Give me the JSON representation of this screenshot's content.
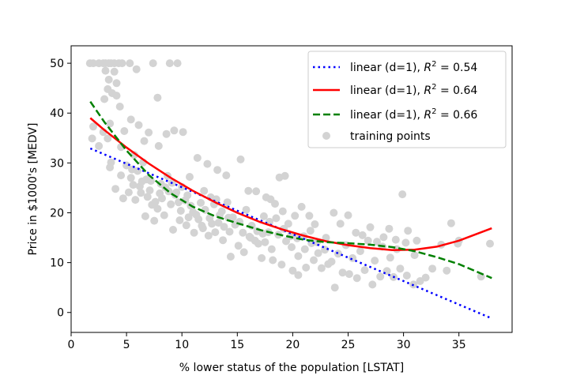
{
  "chart_data": {
    "type": "scatter",
    "title": "",
    "xlabel": "% lower status of the population [LSTAT]",
    "ylabel": "Price in $1000's [MEDV]",
    "xlim": [
      0,
      39.8
    ],
    "ylim": [
      -4,
      53.5
    ],
    "xticks": [
      0,
      5,
      10,
      15,
      20,
      25,
      30,
      35
    ],
    "yticks": [
      0,
      10,
      20,
      30,
      40,
      50
    ],
    "grid": false,
    "legend_position": "top-right",
    "scatter_series": {
      "name": "training points",
      "color": "#d3d3d3",
      "points": [
        [
          1.7,
          50
        ],
        [
          2.0,
          50
        ],
        [
          2.5,
          50
        ],
        [
          2.9,
          50
        ],
        [
          3.1,
          50
        ],
        [
          3.4,
          50
        ],
        [
          3.6,
          50
        ],
        [
          3.9,
          50
        ],
        [
          4.3,
          50
        ],
        [
          4.6,
          50
        ],
        [
          5.3,
          50
        ],
        [
          7.4,
          50
        ],
        [
          8.9,
          50
        ],
        [
          9.6,
          50
        ],
        [
          3.1,
          48.5
        ],
        [
          3.9,
          48.3
        ],
        [
          5.9,
          48.8
        ],
        [
          3.4,
          46.7
        ],
        [
          4.1,
          46
        ],
        [
          3.3,
          44.8
        ],
        [
          3.7,
          44
        ],
        [
          4.1,
          43.5
        ],
        [
          7.8,
          43.1
        ],
        [
          3.0,
          42.8
        ],
        [
          4.4,
          41.3
        ],
        [
          2.0,
          37.3
        ],
        [
          3.5,
          37.9
        ],
        [
          5.4,
          38.7
        ],
        [
          2.9,
          36.2
        ],
        [
          3.3,
          34.9
        ],
        [
          4.8,
          36.4
        ],
        [
          1.9,
          34.9
        ],
        [
          2.5,
          33.4
        ],
        [
          4.5,
          33.2
        ],
        [
          6.1,
          37.6
        ],
        [
          7.0,
          36.1
        ],
        [
          8.6,
          35.8
        ],
        [
          9.3,
          36.5
        ],
        [
          10.1,
          36.2
        ],
        [
          5.7,
          31.6
        ],
        [
          6.5,
          30.1
        ],
        [
          5.5,
          28.7
        ],
        [
          3.6,
          30.1
        ],
        [
          4.5,
          27.5
        ],
        [
          3.5,
          29.1
        ],
        [
          6.6,
          34.4
        ],
        [
          7.9,
          33.4
        ],
        [
          4.0,
          24.8
        ],
        [
          4.7,
          22.9
        ],
        [
          5.2,
          24.1
        ],
        [
          5.8,
          22.6
        ],
        [
          6.2,
          25.3
        ],
        [
          6.8,
          26.7
        ],
        [
          7.1,
          24.5
        ],
        [
          7.6,
          22.2
        ],
        [
          8.0,
          23.9
        ],
        [
          8.5,
          25.1
        ],
        [
          9.0,
          21.7
        ],
        [
          9.4,
          23.6
        ],
        [
          9.9,
          20.4
        ],
        [
          10.3,
          22.5
        ],
        [
          10.8,
          21.4
        ],
        [
          11.3,
          19.6
        ],
        [
          11.7,
          22.0
        ],
        [
          12.1,
          20.6
        ],
        [
          12.5,
          18.9
        ],
        [
          12.9,
          21.7
        ],
        [
          13.4,
          19.5
        ],
        [
          5.0,
          29.5
        ],
        [
          5.4,
          27.0
        ],
        [
          6.0,
          28.4
        ],
        [
          6.4,
          26.3
        ],
        [
          6.9,
          23.2
        ],
        [
          7.3,
          21.6
        ],
        [
          7.8,
          20.8
        ],
        [
          8.2,
          22.9
        ],
        [
          8.7,
          27.4
        ],
        [
          9.1,
          26.0
        ],
        [
          9.5,
          24.1
        ],
        [
          10.0,
          25.2
        ],
        [
          10.5,
          23.5
        ],
        [
          11.0,
          20.1
        ],
        [
          11.5,
          18.7
        ],
        [
          12.0,
          24.4
        ],
        [
          12.6,
          23.1
        ],
        [
          13.1,
          22.7
        ],
        [
          13.6,
          20.3
        ],
        [
          14.1,
          22.1
        ],
        [
          14.6,
          19.1
        ],
        [
          5.6,
          25.6
        ],
        [
          6.3,
          24.0
        ],
        [
          7.2,
          26.4
        ],
        [
          8.1,
          25.8
        ],
        [
          8.8,
          24.3
        ],
        [
          9.7,
          22.1
        ],
        [
          10.6,
          19.1
        ],
        [
          11.9,
          16.9
        ],
        [
          12.4,
          15.4
        ],
        [
          13.8,
          17.2
        ],
        [
          14.3,
          16.2
        ],
        [
          15.2,
          18.2
        ],
        [
          15.8,
          20.6
        ],
        [
          16.3,
          17.4
        ],
        [
          16.8,
          16.3
        ],
        [
          17.4,
          19.3
        ],
        [
          17.9,
          18.2
        ],
        [
          18.4,
          21.8
        ],
        [
          19.1,
          20.3
        ],
        [
          19.6,
          17.8
        ],
        [
          20.2,
          19.4
        ],
        [
          20.8,
          21.2
        ],
        [
          21.5,
          19.4
        ],
        [
          13.2,
          28.6
        ],
        [
          14.0,
          27.5
        ],
        [
          15.3,
          30.7
        ],
        [
          12.3,
          29.8
        ],
        [
          11.4,
          31.0
        ],
        [
          10.7,
          27.2
        ],
        [
          16.0,
          24.4
        ],
        [
          16.7,
          24.3
        ],
        [
          17.6,
          23.1
        ],
        [
          18.8,
          27.1
        ],
        [
          19.3,
          27.4
        ],
        [
          18.0,
          22.7
        ],
        [
          13.0,
          16.1
        ],
        [
          13.7,
          14.5
        ],
        [
          14.4,
          11.2
        ],
        [
          15.1,
          13.4
        ],
        [
          15.6,
          12.1
        ],
        [
          16.2,
          15.0
        ],
        [
          16.9,
          13.8
        ],
        [
          17.5,
          14.1
        ],
        [
          18.1,
          12.7
        ],
        [
          18.7,
          15.6
        ],
        [
          19.4,
          14.3
        ],
        [
          19.9,
          13.1
        ],
        [
          20.5,
          11.3
        ],
        [
          21.1,
          12.7
        ],
        [
          21.7,
          13.9
        ],
        [
          22.3,
          11.9
        ],
        [
          22.9,
          12.6
        ],
        [
          23.5,
          10.2
        ],
        [
          24.1,
          11.8
        ],
        [
          24.8,
          13.5
        ],
        [
          25.4,
          10.9
        ],
        [
          26.1,
          12.3
        ],
        [
          26.8,
          14.4
        ],
        [
          27.4,
          10.4
        ],
        [
          28.1,
          13.2
        ],
        [
          28.8,
          11.0
        ],
        [
          29.4,
          12.7
        ],
        [
          30.2,
          14.0
        ],
        [
          31.0,
          11.5
        ],
        [
          21.6,
          16.4
        ],
        [
          22.2,
          14.1
        ],
        [
          23.0,
          15.0
        ],
        [
          23.7,
          20.0
        ],
        [
          24.3,
          17.8
        ],
        [
          25.0,
          19.5
        ],
        [
          25.7,
          16.0
        ],
        [
          26.3,
          15.5
        ],
        [
          27.0,
          17.1
        ],
        [
          27.6,
          14.2
        ],
        [
          28.2,
          15.1
        ],
        [
          28.7,
          16.8
        ],
        [
          29.3,
          14.6
        ],
        [
          29.9,
          23.7
        ],
        [
          30.4,
          16.4
        ],
        [
          31.2,
          14.4
        ],
        [
          33.4,
          13.6
        ],
        [
          34.3,
          17.9
        ],
        [
          34.9,
          13.8
        ],
        [
          35.0,
          14.4
        ],
        [
          37.8,
          13.8
        ],
        [
          37.0,
          7.2
        ],
        [
          17.2,
          10.9
        ],
        [
          18.2,
          10.5
        ],
        [
          19.0,
          9.6
        ],
        [
          20.0,
          8.4
        ],
        [
          20.5,
          7.5
        ],
        [
          21.2,
          9.0
        ],
        [
          21.9,
          10.5
        ],
        [
          22.6,
          8.9
        ],
        [
          23.2,
          9.7
        ],
        [
          23.8,
          5.0
        ],
        [
          24.5,
          8.0
        ],
        [
          25.1,
          7.7
        ],
        [
          25.8,
          6.9
        ],
        [
          26.5,
          8.5
        ],
        [
          27.2,
          5.6
        ],
        [
          27.9,
          7.2
        ],
        [
          28.5,
          8.3
        ],
        [
          29.1,
          7.1
        ],
        [
          29.7,
          8.8
        ],
        [
          30.3,
          7.4
        ],
        [
          30.9,
          5.6
        ],
        [
          31.5,
          6.3
        ],
        [
          32.0,
          7.0
        ],
        [
          32.6,
          8.8
        ],
        [
          33.9,
          8.4
        ],
        [
          6.7,
          19.3
        ],
        [
          7.5,
          18.4
        ],
        [
          8.4,
          19.5
        ],
        [
          9.2,
          16.6
        ],
        [
          9.8,
          18.5
        ],
        [
          10.4,
          17.5
        ],
        [
          11.1,
          16.0
        ],
        [
          11.8,
          17.4
        ],
        [
          12.7,
          17.8
        ],
        [
          13.3,
          18.0
        ],
        [
          14.2,
          19.0
        ],
        [
          14.8,
          17.6
        ],
        [
          15.5,
          16.0
        ],
        [
          16.1,
          15.2
        ],
        [
          16.6,
          14.4
        ],
        [
          17.3,
          15.8
        ],
        [
          17.8,
          16.1
        ],
        [
          18.5,
          18.9
        ],
        [
          19.2,
          16.8
        ],
        [
          19.8,
          15.3
        ],
        [
          20.4,
          14.9
        ],
        [
          21.0,
          15.3
        ],
        [
          22.0,
          17.7
        ]
      ]
    },
    "fit_series": [
      {
        "name": "linear (d=1), R^2 = 0.54",
        "label_text": "linear (d=1), ",
        "r2_text": " = 0.54",
        "style": "dotted",
        "color": "#0000ff",
        "x": [
          1.73,
          37.97
        ],
        "y": [
          32.9,
          -1.2
        ]
      },
      {
        "name": "linear (d=1), R^2 = 0.64",
        "label_text": "linear (d=1), ",
        "r2_text": " = 0.64",
        "style": "solid",
        "color": "#ff0000",
        "x": [
          1.73,
          3,
          5,
          7,
          9,
          11,
          13,
          15,
          17,
          19,
          21,
          23,
          25,
          27,
          29,
          31,
          33,
          35,
          37.97
        ],
        "y": [
          39.0,
          36.6,
          33.1,
          29.9,
          27.0,
          24.4,
          22.1,
          20.0,
          18.2,
          16.7,
          15.4,
          14.3,
          13.5,
          12.9,
          12.5,
          12.6,
          13.2,
          14.4,
          16.9
        ]
      },
      {
        "name": "linear (d=1), R^2 = 0.66",
        "label_text": "linear (d=1), ",
        "r2_text": " = 0.66",
        "style": "dashed",
        "color": "#008000",
        "x": [
          1.73,
          3,
          5,
          7,
          9,
          11,
          13,
          15,
          17,
          19,
          21,
          23,
          25,
          27,
          29,
          31,
          33,
          35,
          37.97
        ],
        "y": [
          42.3,
          38.2,
          32.5,
          27.6,
          23.9,
          21.2,
          19.3,
          17.9,
          16.6,
          15.5,
          14.6,
          14.1,
          13.9,
          13.6,
          13.1,
          12.3,
          11.1,
          9.7,
          6.9
        ]
      }
    ],
    "legend_r2_symbol": "R",
    "legend_r2_superscript": "2"
  }
}
